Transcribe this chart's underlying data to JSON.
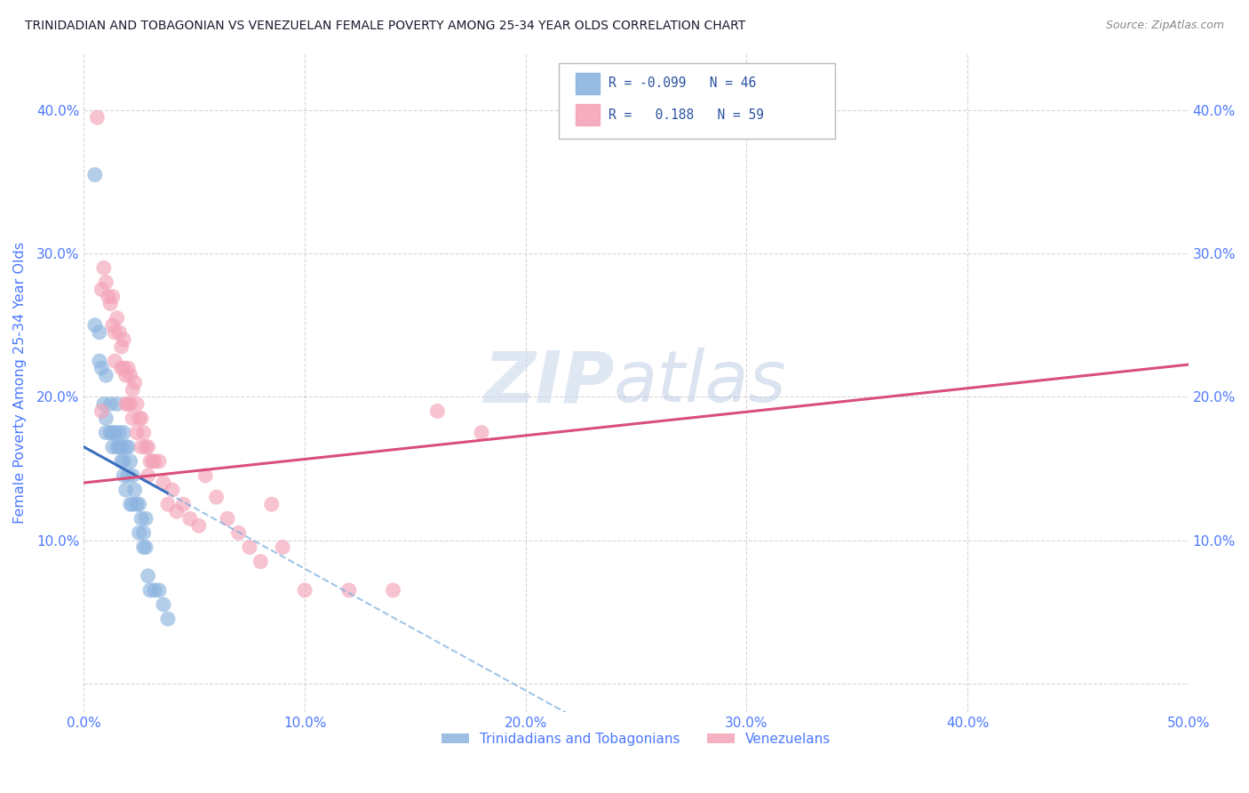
{
  "title": "TRINIDADIAN AND TOBAGONIAN VS VENEZUELAN FEMALE POVERTY AMONG 25-34 YEAR OLDS CORRELATION CHART",
  "source": "Source: ZipAtlas.com",
  "ylabel": "Female Poverty Among 25-34 Year Olds",
  "xlim": [
    0.0,
    0.5
  ],
  "ylim": [
    -0.02,
    0.44
  ],
  "xticks": [
    0.0,
    0.1,
    0.2,
    0.3,
    0.4,
    0.5
  ],
  "xticklabels": [
    "0.0%",
    "10.0%",
    "20.0%",
    "30.0%",
    "40.0%",
    "50.0%"
  ],
  "yticks": [
    0.0,
    0.1,
    0.2,
    0.3,
    0.4
  ],
  "yticklabels": [
    "",
    "10.0%",
    "20.0%",
    "30.0%",
    "40.0%"
  ],
  "color_blue": "#8cb4e0",
  "color_pink": "#f4a4b8",
  "legend_label_blue": "Trinidadians and Tobagonians",
  "legend_label_pink": "Venezuelans",
  "watermark": "ZIPatlas",
  "blue_scatter_x": [
    0.005,
    0.005,
    0.007,
    0.007,
    0.008,
    0.009,
    0.01,
    0.01,
    0.01,
    0.012,
    0.012,
    0.013,
    0.013,
    0.014,
    0.015,
    0.015,
    0.016,
    0.016,
    0.017,
    0.017,
    0.018,
    0.018,
    0.018,
    0.019,
    0.019,
    0.02,
    0.02,
    0.021,
    0.021,
    0.022,
    0.022,
    0.023,
    0.024,
    0.025,
    0.025,
    0.026,
    0.027,
    0.027,
    0.028,
    0.028,
    0.029,
    0.03,
    0.032,
    0.034,
    0.036,
    0.038
  ],
  "blue_scatter_y": [
    0.355,
    0.25,
    0.245,
    0.225,
    0.22,
    0.195,
    0.215,
    0.185,
    0.175,
    0.195,
    0.175,
    0.175,
    0.165,
    0.175,
    0.195,
    0.165,
    0.175,
    0.165,
    0.155,
    0.165,
    0.175,
    0.155,
    0.145,
    0.165,
    0.135,
    0.165,
    0.145,
    0.155,
    0.125,
    0.145,
    0.125,
    0.135,
    0.125,
    0.125,
    0.105,
    0.115,
    0.105,
    0.095,
    0.115,
    0.095,
    0.075,
    0.065,
    0.065,
    0.065,
    0.055,
    0.045
  ],
  "pink_scatter_x": [
    0.006,
    0.008,
    0.009,
    0.01,
    0.011,
    0.012,
    0.013,
    0.013,
    0.014,
    0.014,
    0.015,
    0.016,
    0.017,
    0.017,
    0.018,
    0.018,
    0.019,
    0.019,
    0.02,
    0.02,
    0.021,
    0.021,
    0.022,
    0.022,
    0.023,
    0.024,
    0.024,
    0.025,
    0.026,
    0.026,
    0.027,
    0.028,
    0.029,
    0.029,
    0.03,
    0.031,
    0.032,
    0.034,
    0.036,
    0.038,
    0.04,
    0.042,
    0.045,
    0.048,
    0.052,
    0.055,
    0.06,
    0.065,
    0.07,
    0.075,
    0.08,
    0.085,
    0.09,
    0.1,
    0.12,
    0.14,
    0.16,
    0.18,
    0.008
  ],
  "pink_scatter_y": [
    0.395,
    0.275,
    0.29,
    0.28,
    0.27,
    0.265,
    0.25,
    0.27,
    0.245,
    0.225,
    0.255,
    0.245,
    0.235,
    0.22,
    0.24,
    0.22,
    0.215,
    0.195,
    0.22,
    0.195,
    0.215,
    0.195,
    0.205,
    0.185,
    0.21,
    0.195,
    0.175,
    0.185,
    0.185,
    0.165,
    0.175,
    0.165,
    0.165,
    0.145,
    0.155,
    0.155,
    0.155,
    0.155,
    0.14,
    0.125,
    0.135,
    0.12,
    0.125,
    0.115,
    0.11,
    0.145,
    0.13,
    0.115,
    0.105,
    0.095,
    0.085,
    0.125,
    0.095,
    0.065,
    0.065,
    0.065,
    0.19,
    0.175,
    0.19
  ],
  "blue_trend_x0": 0.0,
  "blue_trend_x_solid_end": 0.038,
  "blue_trend_x_dashed_end": 0.5,
  "blue_trend_y0": 0.165,
  "blue_trend_slope": -0.85,
  "pink_trend_x0": 0.0,
  "pink_trend_x_end": 0.5,
  "pink_trend_y0": 0.14,
  "pink_trend_slope": 0.165,
  "grid_color": "#cccccc",
  "title_color": "#1a1a2e",
  "tick_color": "#4d79ff",
  "watermark_color": "#c8d8f0"
}
